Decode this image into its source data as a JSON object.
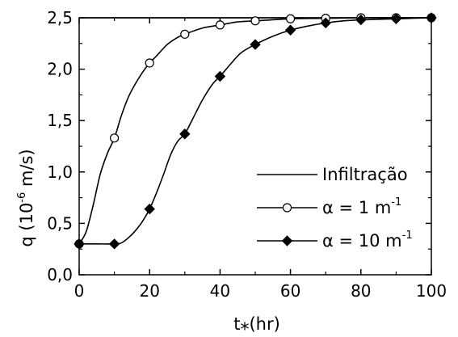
{
  "chart_data": {
    "type": "line",
    "x_axis": {
      "label_main": "t",
      "label_sub": "*",
      "label_rest": "(hr)",
      "range": [
        0,
        100
      ],
      "ticks": [
        "0",
        "20",
        "40",
        "60",
        "80",
        "100"
      ]
    },
    "y_axis": {
      "label_prefix": "q (10",
      "label_exp": "-6",
      "label_suffix": " m/s)",
      "range": [
        0,
        2.5
      ],
      "ticks": [
        "0,0",
        "0,5",
        "1,0",
        "1,5",
        "2,0",
        "2,5"
      ]
    },
    "grid": false,
    "legend_position": "right",
    "series": [
      {
        "name": "Infiltração",
        "legend_text": "Infiltração",
        "marker": "none",
        "curve": [
          [
            0,
            2.5
          ],
          [
            100,
            2.5
          ]
        ],
        "points": []
      },
      {
        "name": "α = 1 m-1",
        "legend_text": "α = 1 m",
        "legend_exp": "-1",
        "marker": "open-circle",
        "curve": [
          [
            0,
            0.3
          ],
          [
            2,
            0.42
          ],
          [
            4,
            0.68
          ],
          [
            6,
            0.98
          ],
          [
            8,
            1.18
          ],
          [
            10,
            1.33
          ],
          [
            12,
            1.55
          ],
          [
            14,
            1.73
          ],
          [
            16,
            1.86
          ],
          [
            18,
            1.97
          ],
          [
            20,
            2.06
          ],
          [
            22,
            2.13
          ],
          [
            25,
            2.24
          ],
          [
            28,
            2.31
          ],
          [
            30,
            2.34
          ],
          [
            35,
            2.4
          ],
          [
            40,
            2.43
          ],
          [
            45,
            2.46
          ],
          [
            50,
            2.47
          ],
          [
            60,
            2.49
          ],
          [
            70,
            2.495
          ],
          [
            80,
            2.5
          ],
          [
            90,
            2.5
          ],
          [
            100,
            2.5
          ]
        ],
        "points": [
          [
            0,
            0.3
          ],
          [
            10,
            1.33
          ],
          [
            20,
            2.06
          ],
          [
            30,
            2.34
          ],
          [
            40,
            2.43
          ],
          [
            50,
            2.47
          ],
          [
            60,
            2.49
          ],
          [
            70,
            2.495
          ],
          [
            80,
            2.5
          ],
          [
            90,
            2.5
          ],
          [
            100,
            2.5
          ]
        ]
      },
      {
        "name": "α = 10 m-1",
        "legend_text": "α = 10 m",
        "legend_exp": "-1",
        "marker": "filled-diamond",
        "curve": [
          [
            0,
            0.3
          ],
          [
            5,
            0.3
          ],
          [
            10,
            0.3
          ],
          [
            12,
            0.31
          ],
          [
            14,
            0.36
          ],
          [
            16,
            0.43
          ],
          [
            18,
            0.52
          ],
          [
            20,
            0.64
          ],
          [
            22,
            0.8
          ],
          [
            24,
            0.98
          ],
          [
            26,
            1.17
          ],
          [
            28,
            1.3
          ],
          [
            30,
            1.37
          ],
          [
            32,
            1.5
          ],
          [
            35,
            1.7
          ],
          [
            38,
            1.86
          ],
          [
            40,
            1.93
          ],
          [
            43,
            2.05
          ],
          [
            46,
            2.16
          ],
          [
            50,
            2.24
          ],
          [
            55,
            2.32
          ],
          [
            60,
            2.38
          ],
          [
            65,
            2.42
          ],
          [
            70,
            2.45
          ],
          [
            75,
            2.47
          ],
          [
            80,
            2.48
          ],
          [
            90,
            2.49
          ],
          [
            100,
            2.5
          ]
        ],
        "points": [
          [
            0,
            0.3
          ],
          [
            10,
            0.3
          ],
          [
            20,
            0.64
          ],
          [
            30,
            1.37
          ],
          [
            40,
            1.93
          ],
          [
            50,
            2.24
          ],
          [
            60,
            2.38
          ],
          [
            70,
            2.45
          ],
          [
            80,
            2.48
          ],
          [
            90,
            2.49
          ],
          [
            100,
            2.5
          ]
        ]
      }
    ]
  }
}
